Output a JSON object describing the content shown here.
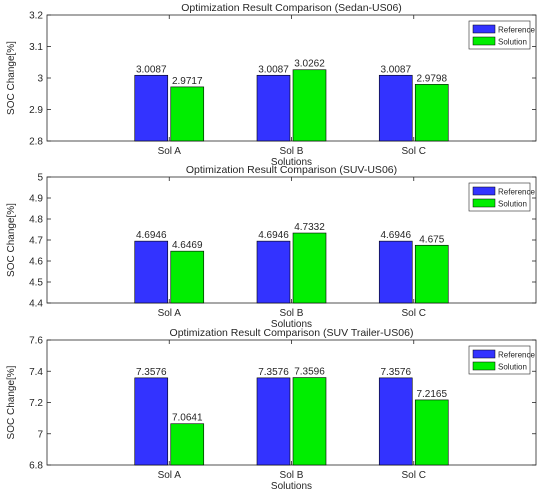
{
  "colors": {
    "reference": "#3333ff",
    "solution": "#00ee00",
    "axis": "#262626",
    "background": "#ffffff"
  },
  "chart_data": [
    {
      "type": "bar",
      "title": "Optimization Result Comparison (Sedan-US06)",
      "xlabel": "Solutions",
      "ylabel": "SOC Change[%]",
      "categories": [
        "Sol A",
        "Sol B",
        "Sol C"
      ],
      "series": [
        {
          "name": "Reference",
          "values": [
            3.0087,
            3.0087,
            3.0087
          ],
          "labels": [
            "3.0087",
            "3.0087",
            "3.0087"
          ]
        },
        {
          "name": "Solution",
          "values": [
            2.9717,
            3.0262,
            2.9798
          ],
          "labels": [
            "2.9717",
            "3.0262",
            "2.9798"
          ]
        }
      ],
      "ylim": [
        2.8,
        3.2
      ],
      "yticks": [
        "2.8",
        "2.9",
        "3",
        "3.1",
        "3.2"
      ],
      "grid": false,
      "legend": "top-right"
    },
    {
      "type": "bar",
      "title": "Optimization Result Comparison (SUV-US06)",
      "xlabel": "Solutions",
      "ylabel": "SOC Change[%]",
      "categories": [
        "Sol A",
        "Sol B",
        "Sol C"
      ],
      "series": [
        {
          "name": "Reference",
          "values": [
            4.6946,
            4.6946,
            4.6946
          ],
          "labels": [
            "4.6946",
            "4.6946",
            "4.6946"
          ]
        },
        {
          "name": "Solution",
          "values": [
            4.6469,
            4.7332,
            4.675
          ],
          "labels": [
            "4.6469",
            "4.7332",
            "4.675"
          ]
        }
      ],
      "ylim": [
        4.4,
        5.0
      ],
      "yticks": [
        "4.4",
        "4.5",
        "4.6",
        "4.7",
        "4.8",
        "4.9",
        "5"
      ],
      "grid": false,
      "legend": "top-right"
    },
    {
      "type": "bar",
      "title": "Optimization Result Comparison (SUV Trailer-US06)",
      "xlabel": "Solutions",
      "ylabel": "SOC Change[%]",
      "categories": [
        "Sol A",
        "Sol B",
        "Sol C"
      ],
      "series": [
        {
          "name": "Reference",
          "values": [
            7.3576,
            7.3576,
            7.3576
          ],
          "labels": [
            "7.3576",
            "7.3576",
            "7.3576"
          ]
        },
        {
          "name": "Solution",
          "values": [
            7.0641,
            7.3596,
            7.2165
          ],
          "labels": [
            "7.0641",
            "7.3596",
            "7.2165"
          ]
        }
      ],
      "ylim": [
        6.8,
        7.6
      ],
      "yticks": [
        "6.8",
        "7",
        "7.2",
        "7.4",
        "7.6"
      ],
      "grid": false,
      "legend": "top-right"
    }
  ]
}
